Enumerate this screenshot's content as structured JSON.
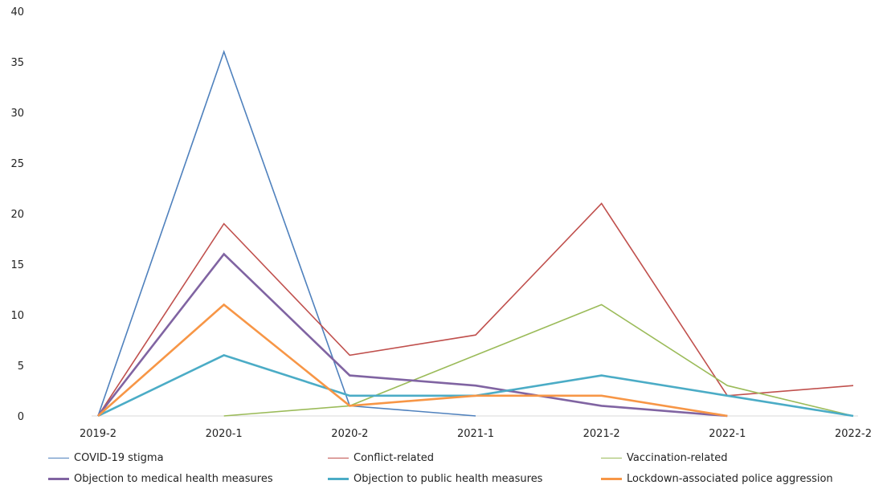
{
  "chart_data": {
    "type": "line",
    "categories": [
      "2019-2",
      "2020-1",
      "2020-2",
      "2021-1",
      "2021-2",
      "2022-1",
      "2022-2"
    ],
    "ylim": [
      0,
      40
    ],
    "yticks": [
      0,
      5,
      10,
      15,
      20,
      25,
      30,
      35,
      40
    ],
    "grid": false,
    "legend_position": "bottom",
    "series": [
      {
        "name": "COVID-19 stigma",
        "color": "#4f81bd",
        "width": "thin",
        "values": [
          0,
          36,
          1,
          0,
          null,
          null,
          null
        ]
      },
      {
        "name": "Conflict-related",
        "color": "#c0504d",
        "width": "thin",
        "values": [
          0,
          19,
          6,
          8,
          21,
          2,
          3
        ]
      },
      {
        "name": "Vaccination-related",
        "color": "#9bbb59",
        "width": "thin",
        "values": [
          null,
          0,
          1,
          6,
          11,
          3,
          0
        ]
      },
      {
        "name": "Objection to medical health measures",
        "color": "#8064a2",
        "width": "thick",
        "values": [
          0,
          16,
          4,
          3,
          1,
          0,
          null
        ]
      },
      {
        "name": "Objection to public health measures",
        "color": "#4bacc6",
        "width": "thick",
        "values": [
          0,
          6,
          2,
          2,
          4,
          2,
          0
        ]
      },
      {
        "name": "Lockdown-associated police aggression",
        "color": "#f79646",
        "width": "thick",
        "values": [
          0,
          11,
          1,
          2,
          2,
          0,
          null
        ]
      }
    ]
  }
}
